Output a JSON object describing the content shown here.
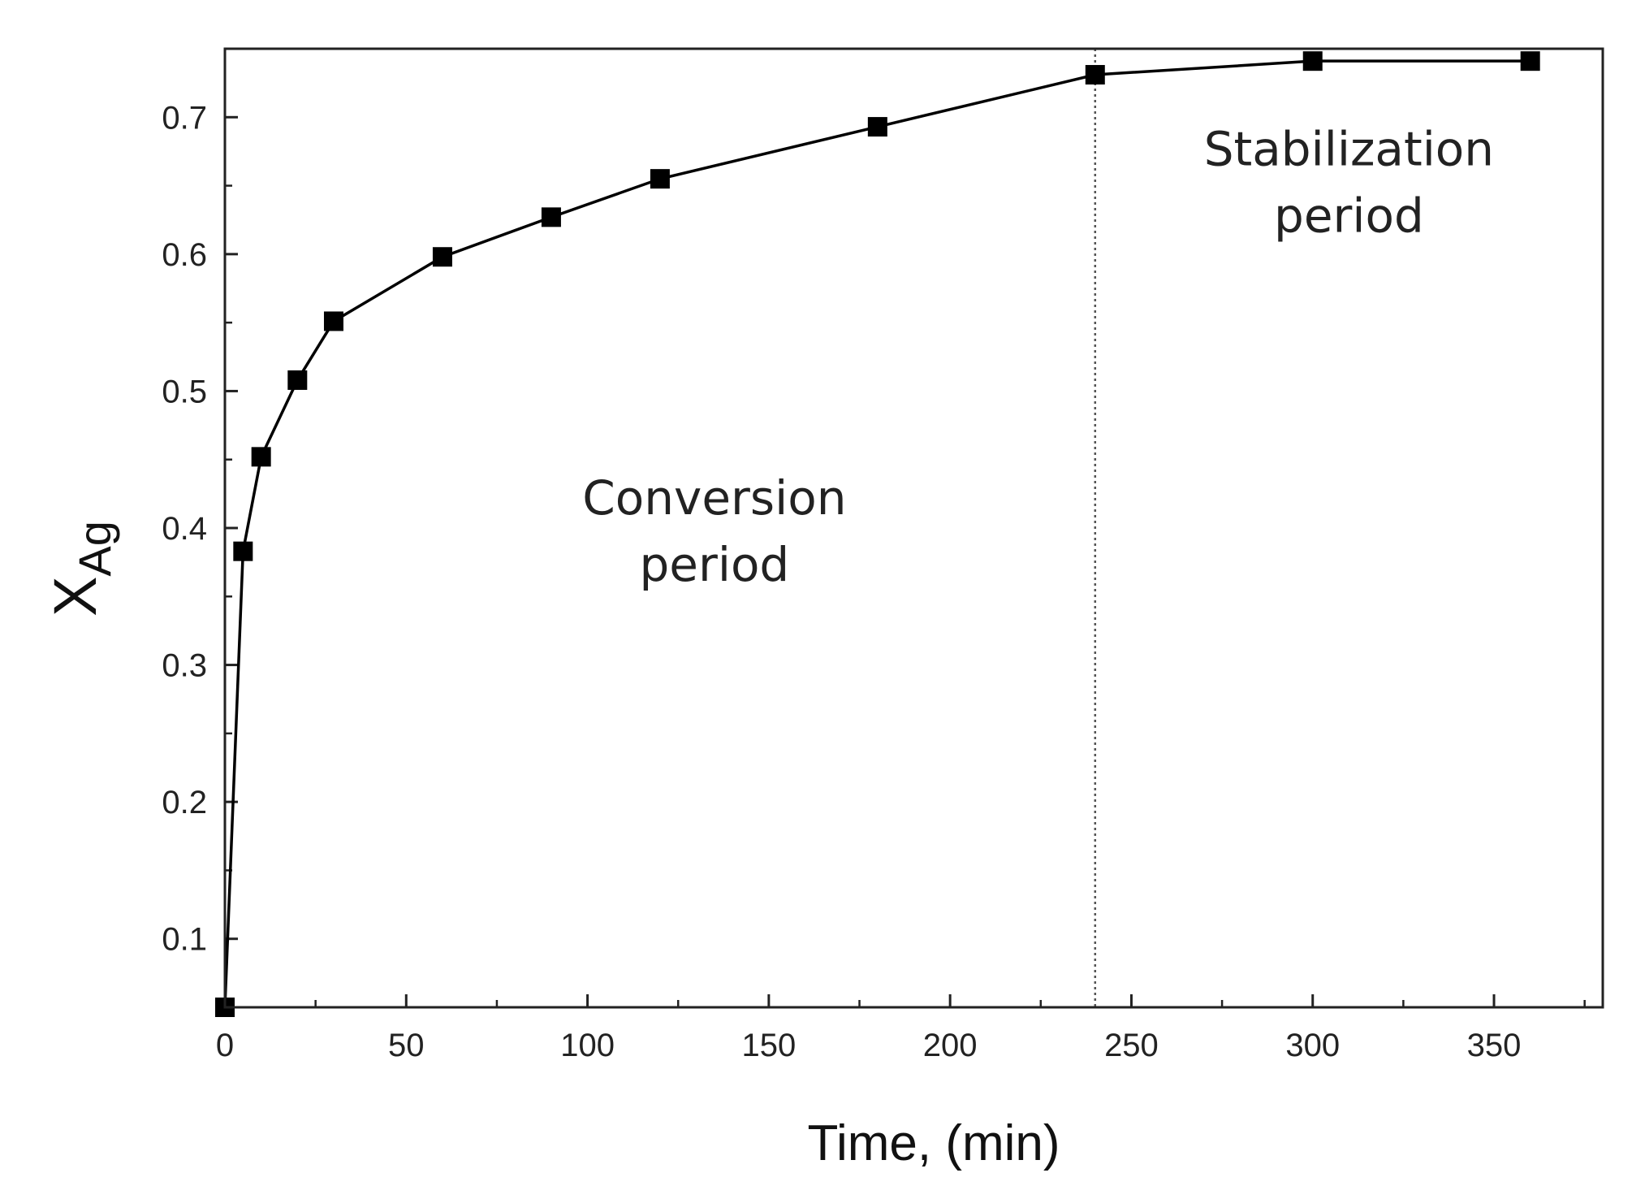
{
  "chart_data": {
    "type": "line",
    "title": "",
    "xlabel": "Time, (min)",
    "ylabel_main": "X",
    "ylabel_sub": "Ag",
    "xlim": [
      0,
      380
    ],
    "ylim": [
      0.05,
      0.75
    ],
    "x_ticks": [
      0,
      50,
      100,
      150,
      200,
      250,
      300,
      350
    ],
    "x_tick_labels": [
      "0",
      "50",
      "100",
      "150",
      "200",
      "250",
      "300",
      "350"
    ],
    "y_ticks": [
      0.1,
      0.2,
      0.3,
      0.4,
      0.5,
      0.6,
      0.7
    ],
    "y_tick_labels": [
      "0.1",
      "0.2",
      "0.3",
      "0.4",
      "0.5",
      "0.6",
      "0.7"
    ],
    "grid": false,
    "legend": "none",
    "marker": "square",
    "line_color": "#000000",
    "marker_color": "#000000",
    "series": [
      {
        "x": [
          0,
          5,
          10,
          20,
          30,
          60,
          90,
          120,
          180,
          240,
          300,
          360
        ],
        "y": [
          0.05,
          0.383,
          0.452,
          0.508,
          0.551,
          0.598,
          0.627,
          0.655,
          0.693,
          0.731,
          0.741,
          0.741
        ]
      }
    ],
    "divider": {
      "x": 240,
      "style": "dotted"
    },
    "annotations": [
      {
        "lines": [
          "Conversion",
          "period"
        ],
        "x": 135,
        "y": 0.41
      },
      {
        "lines": [
          "Stabilization",
          "period"
        ],
        "x": 310,
        "y": 0.665
      }
    ]
  }
}
